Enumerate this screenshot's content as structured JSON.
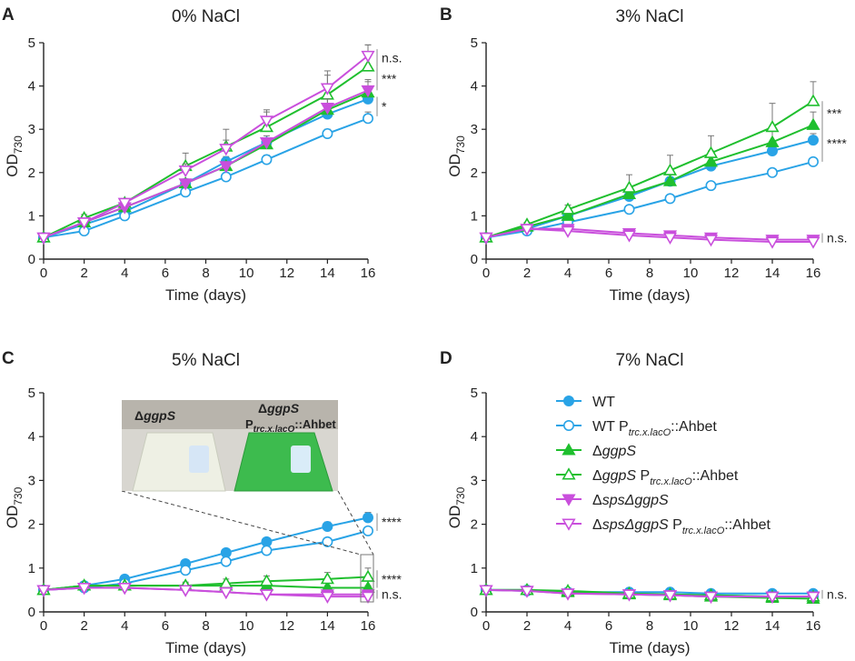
{
  "figure": {
    "colors": {
      "WT": "#29a3e6",
      "ggpS": "#1fbf2e",
      "sps": "#c94fdc",
      "axis": "#222222",
      "err": "#777777"
    },
    "legend": [
      {
        "key": "WT",
        "prefix": "WT",
        "italic": "",
        "promoter": "",
        "suffix": "",
        "color": "WT",
        "filled": true,
        "marker": "circle"
      },
      {
        "key": "WT_Ahbet",
        "prefix": "WT P",
        "italic": "",
        "promoter": "trc.x.lacO",
        "suffix": "::Ahbet",
        "color": "WT",
        "filled": false,
        "marker": "circle"
      },
      {
        "key": "ggpS",
        "prefix": "Δ",
        "italic": "ggpS",
        "promoter": "",
        "suffix": "",
        "color": "ggpS",
        "filled": true,
        "marker": "tri-up"
      },
      {
        "key": "ggpS_Ahbet",
        "prefix": "Δ",
        "italic": "ggpS",
        "promoter": "trc.x.lacO",
        "suffix": "::Ahbet",
        "color": "ggpS",
        "filled": false,
        "marker": "tri-up"
      },
      {
        "key": "sps_ggpS",
        "prefix": "Δ",
        "italic": "spsΔggpS",
        "promoter": "",
        "suffix": "",
        "color": "sps",
        "filled": true,
        "marker": "tri-down"
      },
      {
        "key": "sps_ggpS_Ahbet",
        "prefix": "Δ",
        "italic": "spsΔggpS",
        "promoter": "trc.x.lacO",
        "suffix": "::Ahbet",
        "color": "sps",
        "filled": false,
        "marker": "tri-down"
      }
    ],
    "photo": {
      "left_label": "ΔggpS",
      "right_label": "ΔggpS",
      "right_sub_prefix": "P",
      "right_sub_promoter": "trc.x.lacO",
      "right_sub_suffix": "::Ahbet"
    }
  },
  "chart_data": [
    {
      "panel": "A",
      "title": "0% NaCl",
      "type": "line",
      "xlabel": "Time (days)",
      "ylabel_main": "OD",
      "ylabel_sub": "730",
      "xlim": [
        0,
        16
      ],
      "ylim": [
        0,
        5
      ],
      "xticks": [
        0,
        2,
        4,
        6,
        8,
        10,
        12,
        14,
        16
      ],
      "yticks": [
        0,
        1,
        2,
        3,
        4,
        5
      ],
      "x": [
        0,
        2,
        4,
        7,
        9,
        11,
        14,
        16
      ],
      "series": [
        {
          "name": "WT",
          "values": [
            0.5,
            0.8,
            1.1,
            1.75,
            2.25,
            2.7,
            3.35,
            3.7
          ],
          "err": [
            0.05,
            0.05,
            0.08,
            0.1,
            0.12,
            0.15,
            0.15,
            0.15
          ]
        },
        {
          "name": "WT Ptrc.x.lacO::Ahbet",
          "values": [
            0.5,
            0.65,
            1.0,
            1.55,
            1.9,
            2.3,
            2.9,
            3.25
          ],
          "err": [
            0.05,
            0.05,
            0.05,
            0.1,
            0.08,
            0.1,
            0.1,
            0.15
          ]
        },
        {
          "name": "ΔggpS",
          "values": [
            0.5,
            0.85,
            1.2,
            1.75,
            2.15,
            2.65,
            3.45,
            3.85
          ],
          "err": [
            0.05,
            0.05,
            0.05,
            0.1,
            0.1,
            0.15,
            0.25,
            0.3
          ]
        },
        {
          "name": "ΔggpS Ptrc.x.lacO::Ahbet",
          "values": [
            0.5,
            0.95,
            1.3,
            2.15,
            2.6,
            3.05,
            3.8,
            4.45
          ],
          "err": [
            0.05,
            0.08,
            0.1,
            0.3,
            0.4,
            0.35,
            0.55,
            0.5
          ]
        },
        {
          "name": "ΔspsΔggpS",
          "values": [
            0.5,
            0.85,
            1.2,
            1.75,
            2.15,
            2.7,
            3.5,
            3.9
          ],
          "err": [
            0.05,
            0.05,
            0.05,
            0.1,
            0.1,
            0.1,
            0.2,
            0.2
          ]
        },
        {
          "name": "ΔspsΔggpS Ptrc.x.lacO::Ahbet",
          "values": [
            0.5,
            0.85,
            1.3,
            2.05,
            2.55,
            3.2,
            3.95,
            4.7
          ],
          "err": [
            0.05,
            0.05,
            0.08,
            0.15,
            0.2,
            0.25,
            0.3,
            0.25
          ]
        }
      ],
      "annotations": [
        {
          "text": "n.s.",
          "y_from": 4.45,
          "y_to": 4.85
        },
        {
          "text": "***",
          "y_from": 3.9,
          "y_to": 4.45
        },
        {
          "text": "*",
          "y_from": 3.3,
          "y_to": 3.75
        }
      ]
    },
    {
      "panel": "B",
      "title": "3% NaCl",
      "type": "line",
      "xlabel": "Time (days)",
      "ylabel_main": "OD",
      "ylabel_sub": "730",
      "xlim": [
        0,
        16
      ],
      "ylim": [
        0,
        5
      ],
      "xticks": [
        0,
        2,
        4,
        6,
        8,
        10,
        12,
        14,
        16
      ],
      "yticks": [
        0,
        1,
        2,
        3,
        4,
        5
      ],
      "x": [
        0,
        2,
        4,
        7,
        9,
        11,
        14,
        16
      ],
      "series": [
        {
          "name": "WT",
          "values": [
            0.5,
            0.7,
            1.0,
            1.45,
            1.8,
            2.15,
            2.5,
            2.75
          ],
          "err": [
            0.05,
            0.05,
            0.05,
            0.1,
            0.1,
            0.1,
            0.1,
            0.15
          ]
        },
        {
          "name": "WT Ptrc.x.lacO::Ahbet",
          "values": [
            0.5,
            0.65,
            0.85,
            1.15,
            1.4,
            1.7,
            2.0,
            2.25
          ],
          "err": [
            0.05,
            0.05,
            0.05,
            0.08,
            0.08,
            0.08,
            0.08,
            0.08
          ]
        },
        {
          "name": "ΔggpS",
          "values": [
            0.5,
            0.75,
            1.0,
            1.5,
            1.8,
            2.25,
            2.7,
            3.1
          ],
          "err": [
            0.05,
            0.05,
            0.05,
            0.1,
            0.15,
            0.25,
            0.3,
            0.3
          ]
        },
        {
          "name": "ΔggpS Ptrc.x.lacO::Ahbet",
          "values": [
            0.5,
            0.8,
            1.15,
            1.65,
            2.05,
            2.45,
            3.05,
            3.65
          ],
          "err": [
            0.05,
            0.05,
            0.1,
            0.3,
            0.35,
            0.4,
            0.55,
            0.45
          ]
        },
        {
          "name": "ΔspsΔggpS",
          "values": [
            0.5,
            0.7,
            0.7,
            0.6,
            0.55,
            0.5,
            0.45,
            0.45
          ],
          "err": [
            0.03,
            0.03,
            0.03,
            0.03,
            0.03,
            0.03,
            0.03,
            0.03
          ]
        },
        {
          "name": "ΔspsΔggpS Ptrc.x.lacO::Ahbet",
          "values": [
            0.5,
            0.7,
            0.65,
            0.55,
            0.5,
            0.45,
            0.4,
            0.4
          ],
          "err": [
            0.03,
            0.03,
            0.03,
            0.03,
            0.03,
            0.03,
            0.03,
            0.03
          ]
        }
      ],
      "annotations": [
        {
          "text": "***",
          "y_from": 3.1,
          "y_to": 3.65
        },
        {
          "text": "****",
          "y_from": 2.25,
          "y_to": 3.1
        },
        {
          "text": "n.s.",
          "y_from": 0.38,
          "y_to": 0.6
        }
      ]
    },
    {
      "panel": "C",
      "title": "5% NaCl",
      "type": "line",
      "xlabel": "Time (days)",
      "ylabel_main": "OD",
      "ylabel_sub": "730",
      "xlim": [
        0,
        16
      ],
      "ylim": [
        0,
        5
      ],
      "xticks": [
        0,
        2,
        4,
        6,
        8,
        10,
        12,
        14,
        16
      ],
      "yticks": [
        0,
        1,
        2,
        3,
        4,
        5
      ],
      "x": [
        0,
        2,
        4,
        7,
        9,
        11,
        14,
        16
      ],
      "series": [
        {
          "name": "WT",
          "values": [
            0.5,
            0.6,
            0.75,
            1.1,
            1.35,
            1.6,
            1.95,
            2.15
          ],
          "err": [
            0.03,
            0.03,
            0.05,
            0.08,
            0.08,
            0.08,
            0.1,
            0.12
          ]
        },
        {
          "name": "WT Ptrc.x.lacO::Ahbet",
          "values": [
            0.5,
            0.55,
            0.65,
            0.95,
            1.15,
            1.4,
            1.6,
            1.85
          ],
          "err": [
            0.03,
            0.03,
            0.05,
            0.05,
            0.05,
            0.05,
            0.05,
            0.08
          ]
        },
        {
          "name": "ΔggpS",
          "values": [
            0.5,
            0.6,
            0.6,
            0.6,
            0.6,
            0.6,
            0.55,
            0.55
          ],
          "err": [
            0.03,
            0.03,
            0.03,
            0.05,
            0.05,
            0.05,
            0.05,
            0.05
          ]
        },
        {
          "name": "ΔggpS Ptrc.x.lacO::Ahbet",
          "values": [
            0.5,
            0.6,
            0.6,
            0.6,
            0.65,
            0.7,
            0.75,
            0.8
          ],
          "err": [
            0.03,
            0.03,
            0.05,
            0.08,
            0.1,
            0.12,
            0.15,
            0.2
          ]
        },
        {
          "name": "ΔspsΔggpS",
          "values": [
            0.5,
            0.55,
            0.55,
            0.5,
            0.45,
            0.4,
            0.4,
            0.4
          ],
          "err": [
            0.03,
            0.03,
            0.03,
            0.03,
            0.03,
            0.03,
            0.03,
            0.03
          ]
        },
        {
          "name": "ΔspsΔggpS Ptrc.x.lacO::Ahbet",
          "values": [
            0.5,
            0.55,
            0.55,
            0.5,
            0.45,
            0.4,
            0.35,
            0.35
          ],
          "err": [
            0.03,
            0.03,
            0.03,
            0.03,
            0.03,
            0.03,
            0.03,
            0.03
          ]
        }
      ],
      "annotations": [
        {
          "text": "****",
          "y_from": 1.85,
          "y_to": 2.25
        },
        {
          "text": "****",
          "y_from": 0.55,
          "y_to": 0.95
        },
        {
          "text": "n.s.",
          "y_from": 0.3,
          "y_to": 0.5
        }
      ]
    },
    {
      "panel": "D",
      "title": "7% NaCl",
      "type": "line",
      "xlabel": "Time (days)",
      "ylabel_main": "OD",
      "ylabel_sub": "730",
      "xlim": [
        0,
        16
      ],
      "ylim": [
        0,
        5
      ],
      "xticks": [
        0,
        2,
        4,
        6,
        8,
        10,
        12,
        14,
        16
      ],
      "yticks": [
        0,
        1,
        2,
        3,
        4,
        5
      ],
      "x": [
        0,
        2,
        4,
        7,
        9,
        11,
        14,
        16
      ],
      "series": [
        {
          "name": "WT",
          "values": [
            0.5,
            0.5,
            0.45,
            0.45,
            0.45,
            0.42,
            0.42,
            0.42
          ],
          "err": [
            0.03,
            0.03,
            0.03,
            0.03,
            0.03,
            0.03,
            0.03,
            0.03
          ]
        },
        {
          "name": "WT Ptrc.x.lacO::Ahbet",
          "values": [
            0.5,
            0.48,
            0.45,
            0.42,
            0.4,
            0.38,
            0.35,
            0.35
          ],
          "err": [
            0.03,
            0.03,
            0.03,
            0.03,
            0.03,
            0.03,
            0.03,
            0.03
          ]
        },
        {
          "name": "ΔggpS",
          "values": [
            0.5,
            0.5,
            0.45,
            0.4,
            0.38,
            0.35,
            0.32,
            0.3
          ],
          "err": [
            0.03,
            0.03,
            0.03,
            0.03,
            0.03,
            0.03,
            0.03,
            0.03
          ]
        },
        {
          "name": "ΔggpS Ptrc.x.lacO::Ahbet",
          "values": [
            0.5,
            0.5,
            0.48,
            0.42,
            0.4,
            0.38,
            0.35,
            0.35
          ],
          "err": [
            0.03,
            0.03,
            0.03,
            0.03,
            0.03,
            0.03,
            0.03,
            0.03
          ]
        },
        {
          "name": "ΔspsΔggpS",
          "values": [
            0.5,
            0.48,
            0.42,
            0.4,
            0.38,
            0.35,
            0.35,
            0.35
          ],
          "err": [
            0.03,
            0.03,
            0.03,
            0.03,
            0.03,
            0.03,
            0.03,
            0.03
          ]
        },
        {
          "name": "ΔspsΔggpS Ptrc.x.lacO::Ahbet",
          "values": [
            0.5,
            0.48,
            0.42,
            0.4,
            0.38,
            0.35,
            0.35,
            0.35
          ],
          "err": [
            0.03,
            0.03,
            0.03,
            0.03,
            0.03,
            0.03,
            0.03,
            0.03
          ]
        }
      ],
      "annotations": [
        {
          "text": "n.s.",
          "y_from": 0.3,
          "y_to": 0.5
        }
      ]
    }
  ]
}
